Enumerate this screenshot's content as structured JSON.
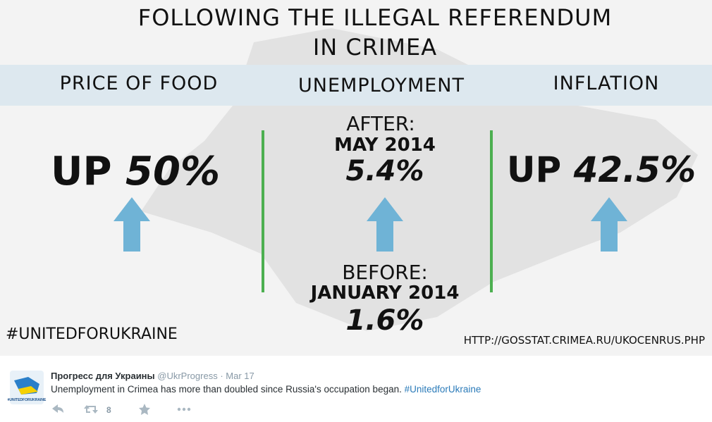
{
  "infographic": {
    "title": [
      "FOLLOWING THE ILLEGAL REFERENDUM",
      "IN CRIMEA"
    ],
    "columns": [
      {
        "heading": "PRICE OF FOOD",
        "prefix": "UP",
        "value": "50%"
      },
      {
        "heading": "UNEMPLOYMENT",
        "after_label": "AFTER:",
        "after_date": "MAY 2014",
        "after_value": "5.4%",
        "before_label": "BEFORE:",
        "before_date": "JANUARY 2014",
        "before_value": "1.6%"
      },
      {
        "heading": "INFLATION",
        "prefix": "UP",
        "value": "42.5%"
      }
    ],
    "hashtag": "#UNITEDFORUKRAINE",
    "source": "HTTP://GOSSTAT.CRIMEA.RU/UKOCENRUS.PHP"
  },
  "tweet": {
    "avatar_text": "#UNITEDFORUKRAINE",
    "name": "Прогресс для Украины",
    "handle": "@UkrProgress",
    "separator": "·",
    "date": "Mar 17",
    "text": "Unemployment in Crimea has more than doubled since Russia's occupation began.",
    "hashtag": "#UnitedforUkraine",
    "retweets": "8"
  }
}
